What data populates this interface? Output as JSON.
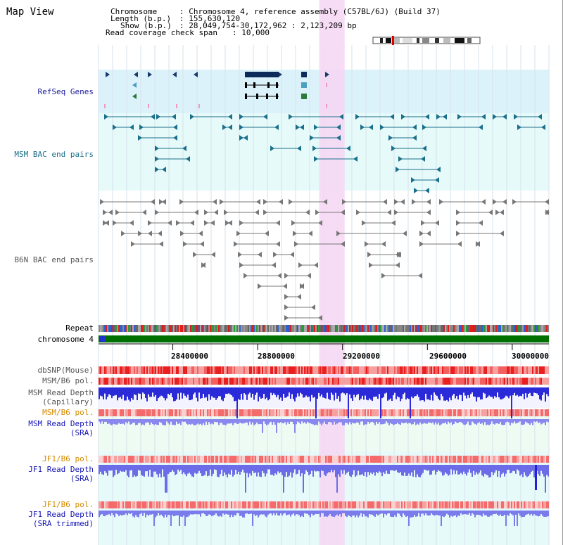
{
  "page_title": "Map View",
  "info": {
    "chromosome_label": "Chromosome",
    "chromosome_value": "Chromosome 4, reference assembly (C57BL/6J) (Build 37)",
    "length_label": "Length (b.p.)",
    "length_value": "155,630,120",
    "show_label": "Show (b.p.)",
    "show_value": "28,049,754-30,172,962 : 2,123,209 bp",
    "coverage_label": "Read coverage check span",
    "coverage_value": "10,000"
  },
  "tracks": {
    "refseq": "RefSeq Genes",
    "msm_bac": "MSM BAC end pairs",
    "b6n_bac": "B6N BAC end pairs",
    "repeat": "Repeat",
    "chromosome": "chromosome 4",
    "dbsnp": "dbSNP(Mouse)",
    "msm_b6_pol_1": "MSM/B6 pol.",
    "msm_depth_cap_1": "MSM Read Depth",
    "msm_depth_cap_2": "(Capillary)",
    "msm_b6_pol_2": "MSM/B6 pol.",
    "msm_depth_sra_1": "MSM Read Depth",
    "msm_depth_sra_2": "(SRA)",
    "jf1_b6_pol_1": "JF1/B6 pol.",
    "jf1_depth_sra_1": "JF1 Read Depth",
    "jf1_depth_sra_2": "(SRA)",
    "jf1_b6_pol_2": "JF1/B6 pol.",
    "jf1_depth_trim_1": "JF1 Read Depth",
    "jf1_depth_trim_2": "(SRA trimmed)"
  },
  "axis": {
    "ticks": [
      "28400000",
      "28800000",
      "29200000",
      "29600000",
      "30000000"
    ],
    "tick_values": [
      28400000,
      28800000,
      29200000,
      29600000,
      30000000
    ],
    "range": [
      28049754,
      30172962
    ]
  },
  "highlight_range": [
    29090000,
    29210000
  ],
  "colors": {
    "refseq_bg": "#dcf2fa",
    "bac_bg": "#e6fafa",
    "highlight": "#f6d6f3",
    "chromosome": "#007000",
    "depth": "#2222dd",
    "pol": "#f07070"
  }
}
